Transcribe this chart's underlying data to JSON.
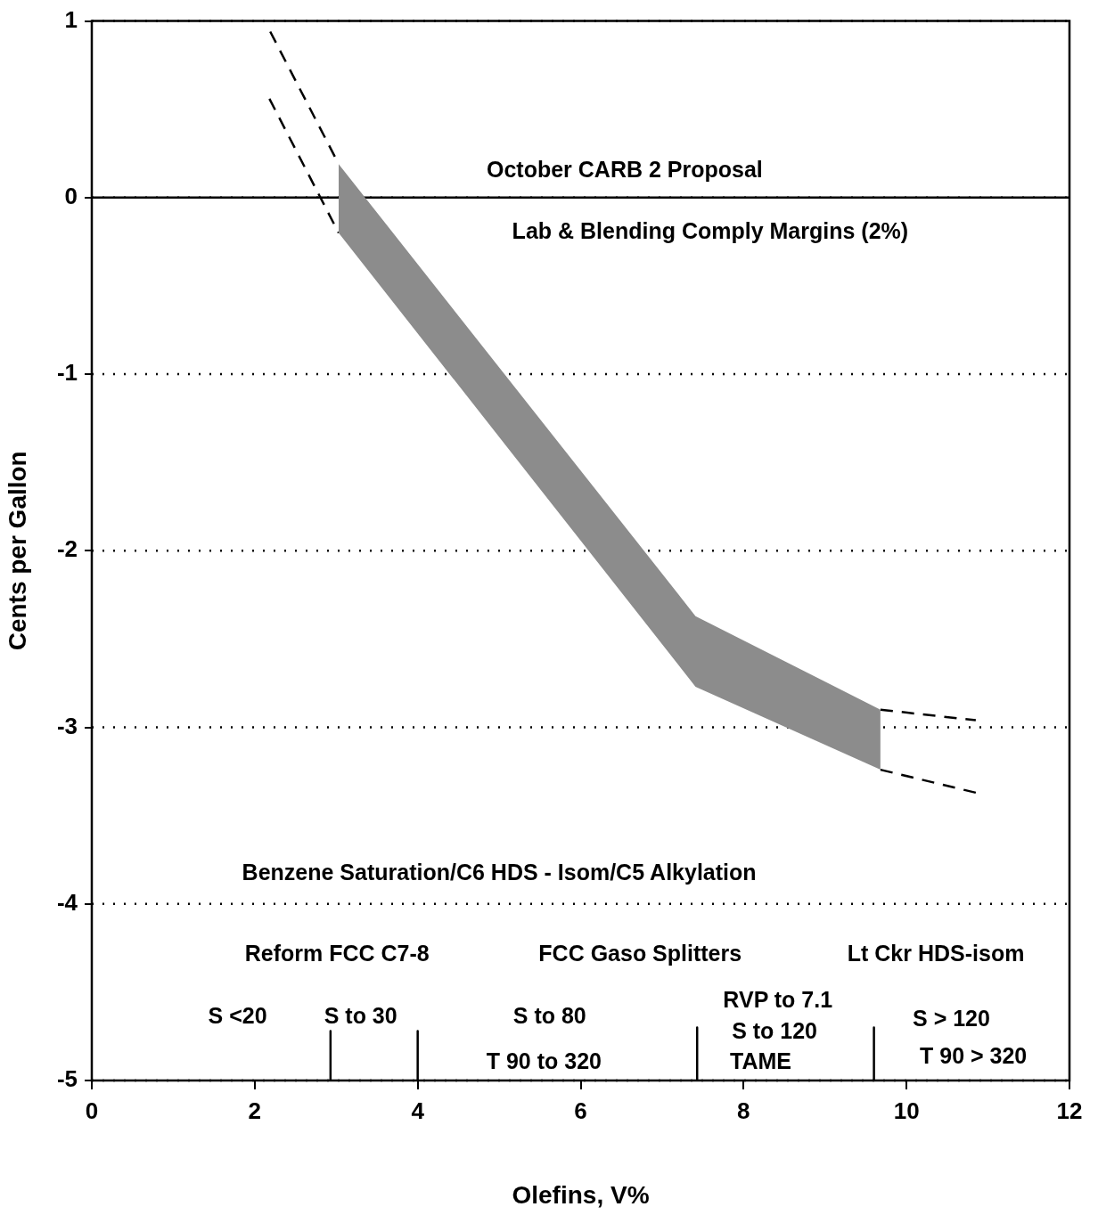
{
  "chart_data": {
    "type": "line",
    "xlabel": "Olefins, V%",
    "ylabel": "Cents per Gallon",
    "xlim": [
      0,
      12
    ],
    "xticks": [
      0,
      2,
      4,
      6,
      8,
      10,
      12
    ],
    "ylim": [
      -5,
      1
    ],
    "yticks": [
      -5,
      -4,
      -3,
      -2,
      -1,
      0,
      1
    ],
    "grid": "y",
    "legend": false,
    "marker": "none",
    "series": [
      {
        "type": "area",
        "color": "#000000",
        "x": [
          3.03,
          7.41,
          9.68
        ],
        "values": [
          null,
          null,
          null
        ],
        "lower": [
          -0.2,
          -2.77,
          -3.24
        ],
        "upper": [
          0.19,
          -2.37,
          -2.9
        ],
        "line_style": "solid"
      },
      {
        "type": "line",
        "color": "#000000",
        "x": [
          2.19,
          3.03
        ],
        "values": [
          0.94,
          0.19
        ],
        "line_style": "dashed"
      },
      {
        "type": "line",
        "color": "#000000",
        "x": [
          2.18,
          3.03
        ],
        "values": [
          0.56,
          -0.2
        ],
        "line_style": "dashed"
      },
      {
        "type": "line",
        "color": "#000000",
        "x": [
          9.68,
          10.85
        ],
        "values": [
          -2.9,
          -2.96
        ],
        "line_style": "dashed"
      },
      {
        "type": "line",
        "color": "#000000",
        "x": [
          9.68,
          10.85
        ],
        "values": [
          -3.24,
          -3.37
        ],
        "line_style": "dashed"
      },
      {
        "type": "line",
        "color": "#000000",
        "x": [
          2.93,
          2.93
        ],
        "values": [
          -4.72,
          -5
        ],
        "line_style": "solid"
      },
      {
        "type": "line",
        "color": "#000000",
        "x": [
          4.0,
          4.0
        ],
        "values": [
          -4.72,
          -5
        ],
        "line_style": "solid"
      },
      {
        "type": "line",
        "color": "#000000",
        "x": [
          7.43,
          7.43
        ],
        "values": [
          -4.7,
          -5
        ],
        "line_style": "solid"
      },
      {
        "type": "line",
        "color": "#000000",
        "x": [
          9.6,
          9.6
        ],
        "values": [
          -4.7,
          -5
        ],
        "line_style": "solid"
      }
    ],
    "ref_lines": [
      {
        "axis": "y",
        "value": 0,
        "color": "#000000",
        "line_style": "solid"
      }
    ],
    "annotations": [
      "October CARB 2 Proposal",
      "Lab & Blending Comply Margins (2%)",
      "Benzene Saturation/C6 HDS - Isom/C5 Alkylation",
      "Reform FCC C7-8",
      "FCC Gaso Splitters",
      "Lt Ckr HDS-isom",
      "S <20",
      "S to 30",
      "S to 80",
      "T 90 to 320",
      "RVP to 7.1",
      "S to 120",
      "TAME",
      "S > 120",
      "T 90 > 320"
    ]
  }
}
